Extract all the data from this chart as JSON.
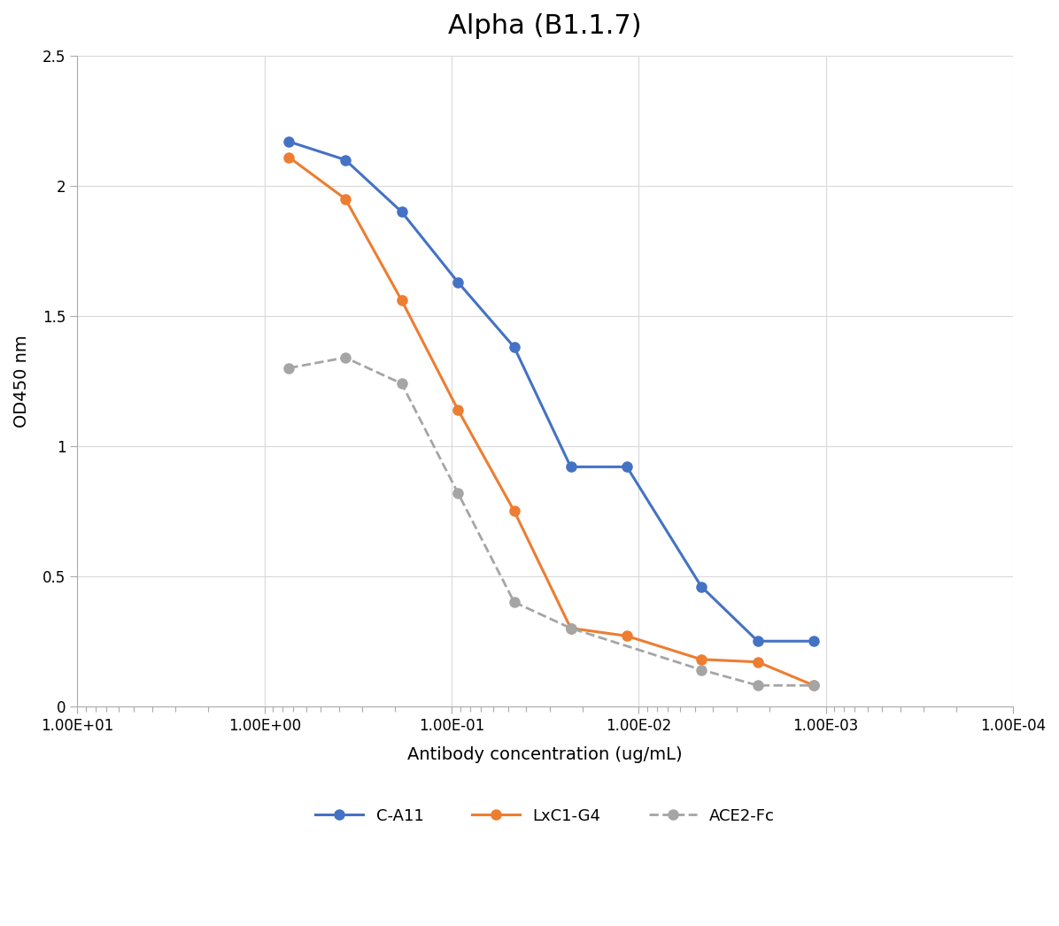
{
  "title": "Alpha (B1.1.7)",
  "xlabel": "Antibody concentration (ug/mL)",
  "ylabel": "OD450 nm",
  "xlim_log": [
    10,
    0.0001
  ],
  "ylim": [
    0,
    2.5
  ],
  "yticks": [
    0,
    0.5,
    1.0,
    1.5,
    2.0,
    2.5
  ],
  "xticks": [
    10,
    1,
    0.1,
    0.01,
    0.001,
    0.0001
  ],
  "xtick_labels": [
    "1.00E+01",
    "1.00E+00",
    "1.00E-01",
    "1.00E-02",
    "1.00E-03",
    "1.00E-04"
  ],
  "series": {
    "C-A11": {
      "x": [
        0.74,
        0.37,
        0.185,
        0.0926,
        0.0463,
        0.0231,
        0.01157,
        0.00463,
        0.00231,
        0.00116
      ],
      "y": [
        2.17,
        2.1,
        1.9,
        1.63,
        1.38,
        0.92,
        0.92,
        0.46,
        0.25,
        0.25
      ],
      "color": "#4472C4",
      "marker": "o",
      "linestyle": "-",
      "linewidth": 2.2,
      "markersize": 8,
      "label": "C-A11"
    },
    "LxC1-G4": {
      "x": [
        0.74,
        0.37,
        0.185,
        0.0926,
        0.0463,
        0.0231,
        0.01157,
        0.00463,
        0.00231,
        0.00116
      ],
      "y": [
        2.11,
        1.95,
        1.56,
        1.14,
        0.75,
        0.3,
        0.27,
        0.18,
        0.17,
        0.08
      ],
      "color": "#ED7D31",
      "marker": "o",
      "linestyle": "-",
      "linewidth": 2.2,
      "markersize": 8,
      "label": "LxC1-G4"
    },
    "ACE2-Fc": {
      "x": [
        0.74,
        0.37,
        0.185,
        0.0926,
        0.0463,
        0.0231,
        0.00463,
        0.00231,
        0.00116
      ],
      "y": [
        1.3,
        1.34,
        1.24,
        0.82,
        0.4,
        0.3,
        0.14,
        0.08,
        0.08
      ],
      "color": "#A5A5A5",
      "marker": "o",
      "linestyle": "--",
      "linewidth": 2.0,
      "markersize": 8,
      "label": "ACE2-Fc"
    }
  },
  "background_color": "#FFFFFF",
  "grid_color": "#D9D9D9",
  "title_fontsize": 22,
  "axis_label_fontsize": 14,
  "tick_fontsize": 12,
  "legend_fontsize": 13
}
